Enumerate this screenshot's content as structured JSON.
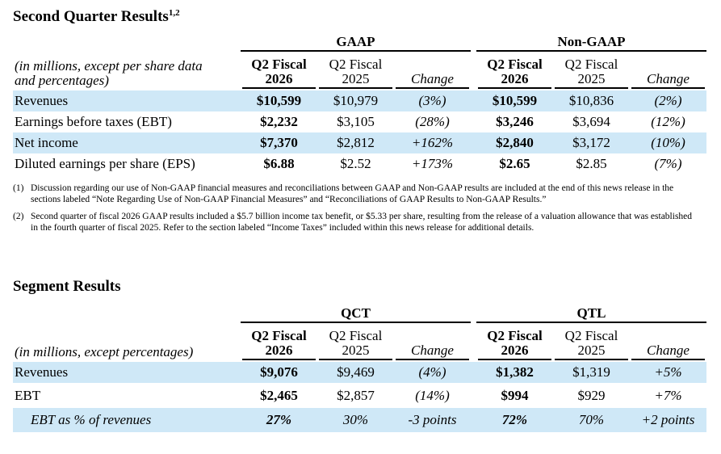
{
  "section1": {
    "title": "Second Quarter Results",
    "title_sup": "1,2",
    "group_left": "GAAP",
    "group_right": "Non-GAAP",
    "row_label_header_line1": "(in millions, except per share data",
    "row_label_header_line2": "and percentages)",
    "col_q2_fy26_line1": "Q2 Fiscal",
    "col_q2_fy26_line2": "2026",
    "col_q2_fy25_line1": "Q2 Fiscal",
    "col_q2_fy25_line2": "2025",
    "col_change": "Change",
    "rows": [
      {
        "label": "Revenues",
        "gaap_26": "$10,599",
        "gaap_25": "$10,979",
        "gaap_chg": "(3%)",
        "ng_26": "$10,599",
        "ng_25": "$10,836",
        "ng_chg": "(2%)"
      },
      {
        "label": "Earnings before taxes (EBT)",
        "gaap_26": "$2,232",
        "gaap_25": "$3,105",
        "gaap_chg": "(28%)",
        "ng_26": "$3,246",
        "ng_25": "$3,694",
        "ng_chg": "(12%)"
      },
      {
        "label": "Net income",
        "gaap_26": "$7,370",
        "gaap_25": "$2,812",
        "gaap_chg": "+162%",
        "ng_26": "$2,840",
        "ng_25": "$3,172",
        "ng_chg": "(10%)"
      },
      {
        "label": "Diluted earnings per share (EPS)",
        "gaap_26": "$6.88",
        "gaap_25": "$2.52",
        "gaap_chg": "+173%",
        "ng_26": "$2.65",
        "ng_25": "$2.85",
        "ng_chg": "(7%)"
      }
    ]
  },
  "footnotes": [
    {
      "num": "(1)",
      "text": "Discussion regarding our use of Non-GAAP financial measures and reconciliations between GAAP and Non-GAAP results are included at the end of this news release in the sections labeled “Note Regarding Use of Non-GAAP Financial Measures” and “Reconciliations of GAAP Results to Non-GAAP Results.”"
    },
    {
      "num": "(2)",
      "text": "Second quarter of fiscal 2026 GAAP results included a $5.7 billion income tax benefit, or $5.33 per share, resulting from the release of a valuation allowance that was established in the fourth quarter of fiscal 2025. Refer to the section labeled “Income Taxes” included within this news release for additional details."
    }
  ],
  "section2": {
    "title": "Segment Results",
    "group_left": "QCT",
    "group_right": "QTL",
    "row_label_header": "(in millions, except percentages)",
    "col_q2_fy26_line1": "Q2 Fiscal",
    "col_q2_fy26_line2": "2026",
    "col_q2_fy25_line1": "Q2 Fiscal",
    "col_q2_fy25_line2": "2025",
    "col_change": "Change",
    "rows": [
      {
        "label": "Revenues",
        "qct_26": "$9,076",
        "qct_25": "$9,469",
        "qct_chg": "(4%)",
        "qtl_26": "$1,382",
        "qtl_25": "$1,319",
        "qtl_chg": "+5%"
      },
      {
        "label": "EBT",
        "qct_26": "$2,465",
        "qct_25": "$2,857",
        "qct_chg": "(14%)",
        "qtl_26": "$994",
        "qtl_25": "$929",
        "qtl_chg": "+7%"
      },
      {
        "label": "EBT as % of revenues",
        "qct_26": "27%",
        "qct_25": "30%",
        "qct_chg": "-3 points",
        "qtl_26": "72%",
        "qtl_25": "70%",
        "qtl_chg": "+2 points"
      }
    ]
  },
  "colors": {
    "row_shade": "#cfe8f7",
    "text": "#000000"
  }
}
